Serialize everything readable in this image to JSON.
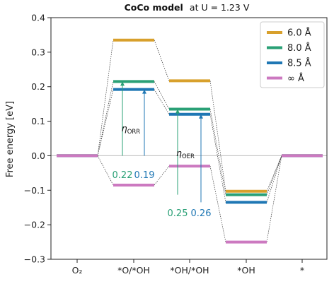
{
  "chart_data": {
    "type": "line",
    "title_bold": "CoCo model",
    "title_rest": "at U = 1.23 V",
    "ylabel": "Free energy [eV]",
    "xlabel": "",
    "ylim": [
      -0.3,
      0.4
    ],
    "yticks": [
      -0.3,
      -0.2,
      -0.1,
      0.0,
      0.1,
      0.2,
      0.3,
      0.4
    ],
    "ytick_labels": [
      "−0.3",
      "−0.2",
      "−0.1",
      "0.0",
      "0.1",
      "0.2",
      "0.3",
      "0.4"
    ],
    "categories": [
      "O₂",
      "*O/*OH",
      "*OH/*OH",
      "*OH",
      "*"
    ],
    "grid": false,
    "legend_position": "top-right",
    "zero_line_color": "#bbbbbb",
    "series": [
      {
        "name": "6.0 Å",
        "color": "#d8a02c",
        "values": [
          0.0,
          0.335,
          0.217,
          -0.103,
          0.0
        ]
      },
      {
        "name": "8.0 Å",
        "color": "#2aa076",
        "values": [
          0.0,
          0.215,
          0.135,
          -0.113,
          0.0
        ]
      },
      {
        "name": "8.5 Å",
        "color": "#1f77b4",
        "values": [
          0.0,
          0.192,
          0.12,
          -0.135,
          0.0
        ]
      },
      {
        "name": "∞ Å",
        "color": "#cc79c0",
        "values": [
          0.0,
          -0.085,
          -0.03,
          -0.25,
          0.0
        ]
      }
    ],
    "annotations": [
      {
        "text": "0.22",
        "value": 0.22,
        "series": "8.0 Å",
        "step": 1,
        "color": "#2aa076"
      },
      {
        "text": "0.19",
        "value": 0.19,
        "series": "8.5 Å",
        "step": 1,
        "color": "#1f77b4"
      },
      {
        "text": "0.25",
        "value": 0.25,
        "series": "8.0 Å",
        "step": 3,
        "color": "#2aa076"
      },
      {
        "text": "0.26",
        "value": 0.26,
        "series": "8.5 Å",
        "step": 3,
        "color": "#1f77b4"
      }
    ],
    "eta_labels": [
      {
        "symbol": "η",
        "subscript": "ORR"
      },
      {
        "symbol": "η",
        "subscript": "OER"
      }
    ]
  }
}
